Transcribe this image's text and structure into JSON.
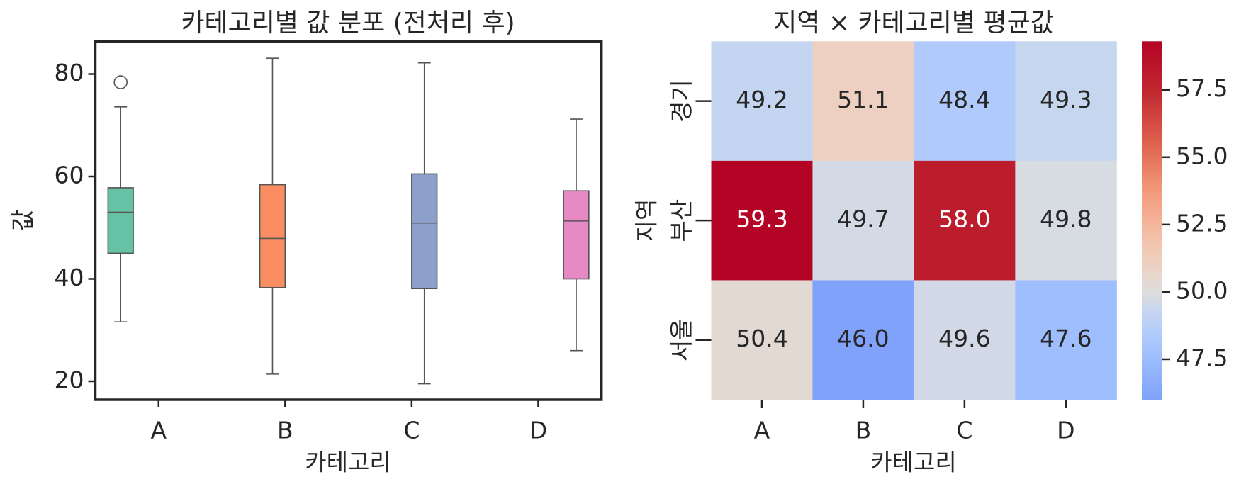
{
  "chart_data": [
    {
      "type": "box",
      "title": "카테고리별 값 분포 (전처리 후)",
      "xlabel": "카테고리",
      "ylabel": "값",
      "categories": [
        "A",
        "B",
        "C",
        "D"
      ],
      "boxes": [
        {
          "whisker_low": 31.6,
          "q1": 45.0,
          "median": 53.0,
          "q3": 57.8,
          "whisker_high": 73.6,
          "outliers": [
            78.4
          ],
          "color": "#66c2a5"
        },
        {
          "whisker_low": 21.4,
          "q1": 38.3,
          "median": 47.9,
          "q3": 58.4,
          "whisker_high": 83.1,
          "outliers": [],
          "color": "#fc8d62"
        },
        {
          "whisker_low": 19.5,
          "q1": 38.1,
          "median": 50.9,
          "q3": 60.5,
          "whisker_high": 82.2,
          "outliers": [],
          "color": "#8da0cb"
        },
        {
          "whisker_low": 26.0,
          "q1": 40.0,
          "median": 51.3,
          "q3": 57.2,
          "whisker_high": 71.2,
          "outliers": [],
          "color": "#e78ac3"
        }
      ],
      "ylim": [
        16.4,
        86.4
      ],
      "yticks": [
        20,
        40,
        60,
        80
      ]
    },
    {
      "type": "heatmap",
      "title": "지역 × 카테고리별 평균값",
      "xlabel": "카테고리",
      "ylabel": "지역",
      "x_categories": [
        "A",
        "B",
        "C",
        "D"
      ],
      "y_categories": [
        "경기",
        "부산",
        "서울"
      ],
      "values": [
        [
          49.2,
          51.1,
          48.4,
          49.3
        ],
        [
          59.3,
          49.7,
          58.0,
          49.8
        ],
        [
          50.4,
          46.0,
          49.6,
          47.6
        ]
      ],
      "value_labels": [
        [
          "49.2",
          "51.1",
          "48.4",
          "49.3"
        ],
        [
          "59.3",
          "49.7",
          "58.0",
          "49.8"
        ],
        [
          "50.4",
          "46.0",
          "49.6",
          "47.6"
        ]
      ],
      "colormap": "coolwarm",
      "center": 50,
      "clim": [
        46.0,
        59.3
      ],
      "colorbar_ticks": [
        {
          "value": 47.5,
          "label": "47.5"
        },
        {
          "value": 50,
          "label": "50.0"
        },
        {
          "value": 52.5,
          "label": "52.5"
        },
        {
          "value": 55,
          "label": "55.0"
        },
        {
          "value": 57.5,
          "label": "57.5"
        }
      ]
    }
  ]
}
